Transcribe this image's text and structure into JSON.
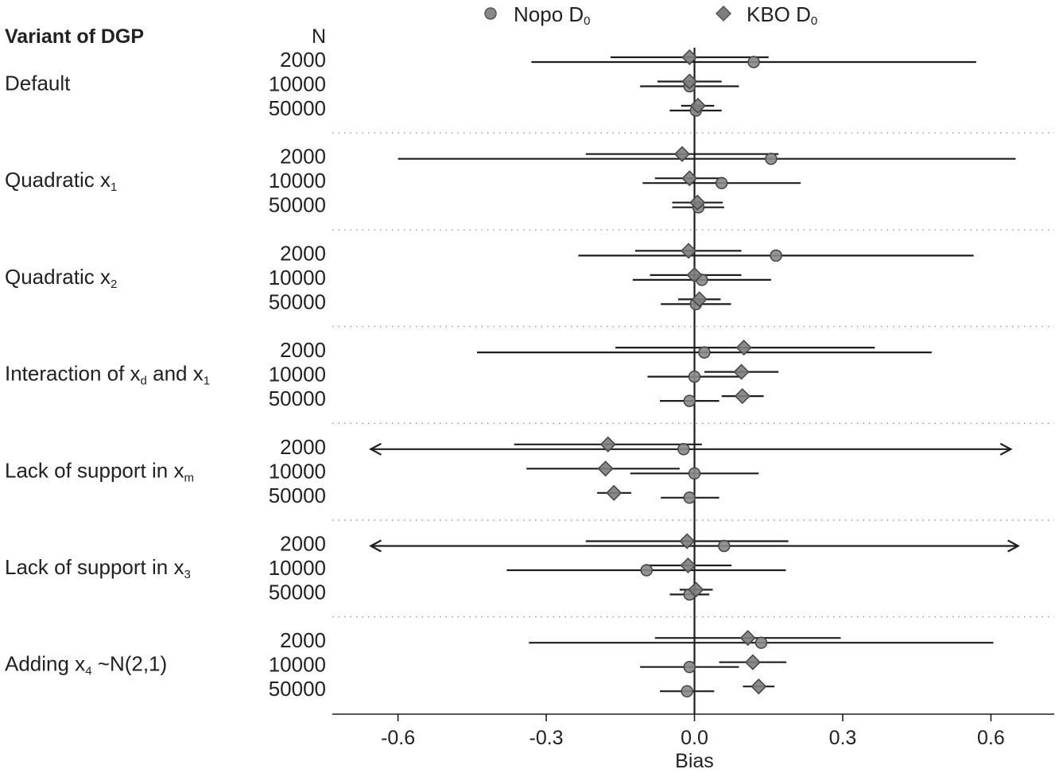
{
  "chart_data": {
    "type": "forest",
    "title": "",
    "xlabel": "Bias",
    "ylabel": "",
    "xlim": [
      -0.73,
      0.73
    ],
    "xticks": [
      -0.6,
      -0.3,
      0.0,
      0.3,
      0.6
    ],
    "xtick_labels": [
      "-0.6",
      "-0.3",
      "0.0",
      "0.3",
      "0.6"
    ],
    "group_header": "Variant of DGP",
    "n_header": "N",
    "legend": {
      "position": "top",
      "entries": [
        {
          "name": "Nopo D",
          "subscript": "0",
          "marker": "circle"
        },
        {
          "name": "KBO D",
          "subscript": "0",
          "marker": "diamond"
        }
      ]
    },
    "colors": {
      "nopo": "#888888",
      "kbo": "#7d7d7d",
      "line": "#1e1e1e",
      "separator": "#999999"
    },
    "groups": [
      {
        "label": "Default",
        "sub": "",
        "rows": [
          {
            "n": "2000",
            "nopo": {
              "est": 0.12,
              "lo": -0.33,
              "hi": 0.57,
              "arrow_lo": false,
              "arrow_hi": false
            },
            "kbo": {
              "est": -0.01,
              "lo": -0.17,
              "hi": 0.15
            }
          },
          {
            "n": "10000",
            "nopo": {
              "est": -0.01,
              "lo": -0.11,
              "hi": 0.09
            },
            "kbo": {
              "est": -0.01,
              "lo": -0.075,
              "hi": 0.055
            }
          },
          {
            "n": "50000",
            "nopo": {
              "est": 0.003,
              "lo": -0.05,
              "hi": 0.055
            },
            "kbo": {
              "est": 0.007,
              "lo": -0.027,
              "hi": 0.04
            }
          }
        ]
      },
      {
        "label": "Quadratic x",
        "sub": "1",
        "rows": [
          {
            "n": "2000",
            "nopo": {
              "est": 0.155,
              "lo": -0.6,
              "hi": 0.65
            },
            "kbo": {
              "est": -0.025,
              "lo": -0.22,
              "hi": 0.17
            }
          },
          {
            "n": "10000",
            "nopo": {
              "est": 0.055,
              "lo": -0.105,
              "hi": 0.215
            },
            "kbo": {
              "est": -0.01,
              "lo": -0.08,
              "hi": 0.06
            }
          },
          {
            "n": "50000",
            "nopo": {
              "est": 0.008,
              "lo": -0.045,
              "hi": 0.06
            },
            "kbo": {
              "est": 0.006,
              "lo": -0.045,
              "hi": 0.057
            }
          }
        ]
      },
      {
        "label": "Quadratic x",
        "sub": "2",
        "rows": [
          {
            "n": "2000",
            "nopo": {
              "est": 0.165,
              "lo": -0.235,
              "hi": 0.565
            },
            "kbo": {
              "est": -0.012,
              "lo": -0.12,
              "hi": 0.095
            }
          },
          {
            "n": "10000",
            "nopo": {
              "est": 0.015,
              "lo": -0.125,
              "hi": 0.155
            },
            "kbo": {
              "est": 0.0,
              "lo": -0.09,
              "hi": 0.095
            }
          },
          {
            "n": "50000",
            "nopo": {
              "est": 0.003,
              "lo": -0.068,
              "hi": 0.074
            },
            "kbo": {
              "est": 0.01,
              "lo": -0.033,
              "hi": 0.053
            }
          }
        ]
      },
      {
        "label": "Interaction of x",
        "sub": "d",
        "label_suffix": " and x",
        "sub2": "1",
        "rows": [
          {
            "n": "2000",
            "nopo": {
              "est": 0.02,
              "lo": -0.44,
              "hi": 0.48
            },
            "kbo": {
              "est": 0.1,
              "lo": -0.16,
              "hi": 0.365
            }
          },
          {
            "n": "10000",
            "nopo": {
              "est": 0.0,
              "lo": -0.095,
              "hi": 0.095
            },
            "kbo": {
              "est": 0.095,
              "lo": 0.02,
              "hi": 0.17
            }
          },
          {
            "n": "50000",
            "nopo": {
              "est": -0.01,
              "lo": -0.07,
              "hi": 0.05
            },
            "kbo": {
              "est": 0.097,
              "lo": 0.055,
              "hi": 0.14
            }
          }
        ]
      },
      {
        "label": "Lack of support in x",
        "sub": "m",
        "rows": [
          {
            "n": "2000",
            "nopo": {
              "est": -0.022,
              "lo": -0.655,
              "hi": 0.64,
              "arrow_lo": true,
              "arrow_hi": true
            },
            "kbo": {
              "est": -0.175,
              "lo": -0.365,
              "hi": 0.015
            }
          },
          {
            "n": "10000",
            "nopo": {
              "est": 0.0,
              "lo": -0.13,
              "hi": 0.13
            },
            "kbo": {
              "est": -0.18,
              "lo": -0.34,
              "hi": -0.03
            }
          },
          {
            "n": "50000",
            "nopo": {
              "est": -0.01,
              "lo": -0.068,
              "hi": 0.05
            },
            "kbo": {
              "est": -0.163,
              "lo": -0.197,
              "hi": -0.128
            }
          }
        ]
      },
      {
        "label": "Lack of support in x",
        "sub": "3",
        "rows": [
          {
            "n": "2000",
            "nopo": {
              "est": 0.06,
              "lo": -0.655,
              "hi": 0.655,
              "arrow_lo": true,
              "arrow_hi": true
            },
            "kbo": {
              "est": -0.015,
              "lo": -0.22,
              "hi": 0.19
            }
          },
          {
            "n": "10000",
            "nopo": {
              "est": -0.097,
              "lo": -0.38,
              "hi": 0.185
            },
            "kbo": {
              "est": -0.013,
              "lo": -0.1,
              "hi": 0.075
            }
          },
          {
            "n": "50000",
            "nopo": {
              "est": -0.01,
              "lo": -0.05,
              "hi": 0.03
            },
            "kbo": {
              "est": 0.003,
              "lo": -0.03,
              "hi": 0.037
            }
          }
        ]
      },
      {
        "label": "Adding x",
        "sub": "4",
        "label_suffix": " ~N(2,1)",
        "rows": [
          {
            "n": "2000",
            "nopo": {
              "est": 0.135,
              "lo": -0.335,
              "hi": 0.605
            },
            "kbo": {
              "est": 0.108,
              "lo": -0.08,
              "hi": 0.296
            }
          },
          {
            "n": "10000",
            "nopo": {
              "est": -0.01,
              "lo": -0.11,
              "hi": 0.09
            },
            "kbo": {
              "est": 0.118,
              "lo": 0.05,
              "hi": 0.186
            }
          },
          {
            "n": "50000",
            "nopo": {
              "est": -0.015,
              "lo": -0.07,
              "hi": 0.04
            },
            "kbo": {
              "est": 0.13,
              "lo": 0.098,
              "hi": 0.162
            }
          }
        ]
      }
    ]
  }
}
